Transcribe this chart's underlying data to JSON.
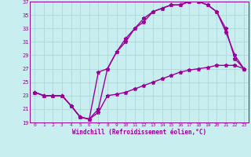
{
  "xlabel": "Windchill (Refroidissement éolien,°C)",
  "xlim": [
    -0.5,
    23.5
  ],
  "ylim": [
    19,
    37
  ],
  "xticks": [
    0,
    1,
    2,
    3,
    4,
    5,
    6,
    7,
    8,
    9,
    10,
    11,
    12,
    13,
    14,
    15,
    16,
    17,
    18,
    19,
    20,
    21,
    22,
    23
  ],
  "yticks": [
    19,
    21,
    23,
    25,
    27,
    29,
    31,
    33,
    35,
    37
  ],
  "bg_color": "#c8eef0",
  "grid_color": "#b0d8dc",
  "line_color": "#990099",
  "line1_x": [
    0,
    1,
    2,
    3,
    4,
    5,
    6,
    7,
    8,
    9,
    10,
    11,
    12,
    13,
    14,
    15,
    16,
    17,
    18,
    19,
    20,
    21,
    22,
    23
  ],
  "line1_y": [
    23.5,
    23.0,
    23.0,
    23.0,
    21.5,
    19.8,
    19.5,
    20.5,
    23.0,
    23.2,
    23.5,
    24.0,
    24.5,
    25.0,
    25.5,
    26.0,
    26.5,
    26.8,
    27.0,
    27.2,
    27.5,
    27.5,
    27.5,
    27.0
  ],
  "line2_x": [
    0,
    1,
    2,
    3,
    4,
    5,
    6,
    7,
    8,
    9,
    10,
    11,
    12,
    13,
    14,
    15,
    16,
    17,
    18,
    19,
    20,
    21,
    22,
    23
  ],
  "line2_y": [
    23.5,
    23.0,
    23.0,
    23.0,
    21.5,
    19.8,
    19.5,
    21.0,
    27.0,
    29.5,
    31.0,
    33.0,
    34.0,
    35.5,
    36.0,
    36.5,
    36.5,
    37.0,
    37.0,
    36.5,
    35.5,
    33.0,
    28.5,
    27.0
  ],
  "line3_x": [
    0,
    1,
    2,
    3,
    4,
    5,
    6,
    7,
    8,
    9,
    10,
    11,
    12,
    13,
    14,
    15,
    16,
    17,
    18,
    19,
    20,
    21,
    22,
    23
  ],
  "line3_y": [
    23.5,
    23.0,
    23.0,
    23.0,
    21.5,
    19.8,
    19.5,
    26.5,
    27.0,
    29.5,
    31.5,
    33.0,
    34.5,
    35.5,
    36.0,
    36.5,
    36.5,
    37.0,
    37.0,
    36.5,
    35.5,
    32.5,
    29.0,
    27.0
  ],
  "marker": "*",
  "markersize": 3.5,
  "linewidth": 1.0
}
